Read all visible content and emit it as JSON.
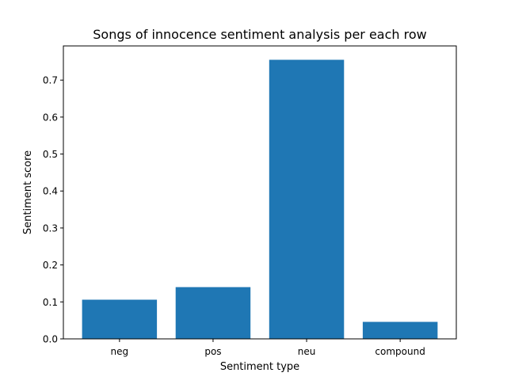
{
  "chart_data": {
    "type": "bar",
    "title": "Songs of innocence sentiment analysis per each row",
    "xlabel": "Sentiment type",
    "ylabel": "Sentiment score",
    "categories": [
      "neg",
      "pos",
      "neu",
      "compound"
    ],
    "values": [
      0.106,
      0.14,
      0.755,
      0.046
    ],
    "ylim": [
      0,
      0.7925
    ],
    "yticks": [
      0.0,
      0.1,
      0.2,
      0.3,
      0.4,
      0.5,
      0.6,
      0.7
    ],
    "ytick_labels": [
      "0.0",
      "0.1",
      "0.2",
      "0.3",
      "0.4",
      "0.5",
      "0.6",
      "0.7"
    ],
    "bar_color": "#1f77b4",
    "grid": false,
    "legend": "none"
  }
}
